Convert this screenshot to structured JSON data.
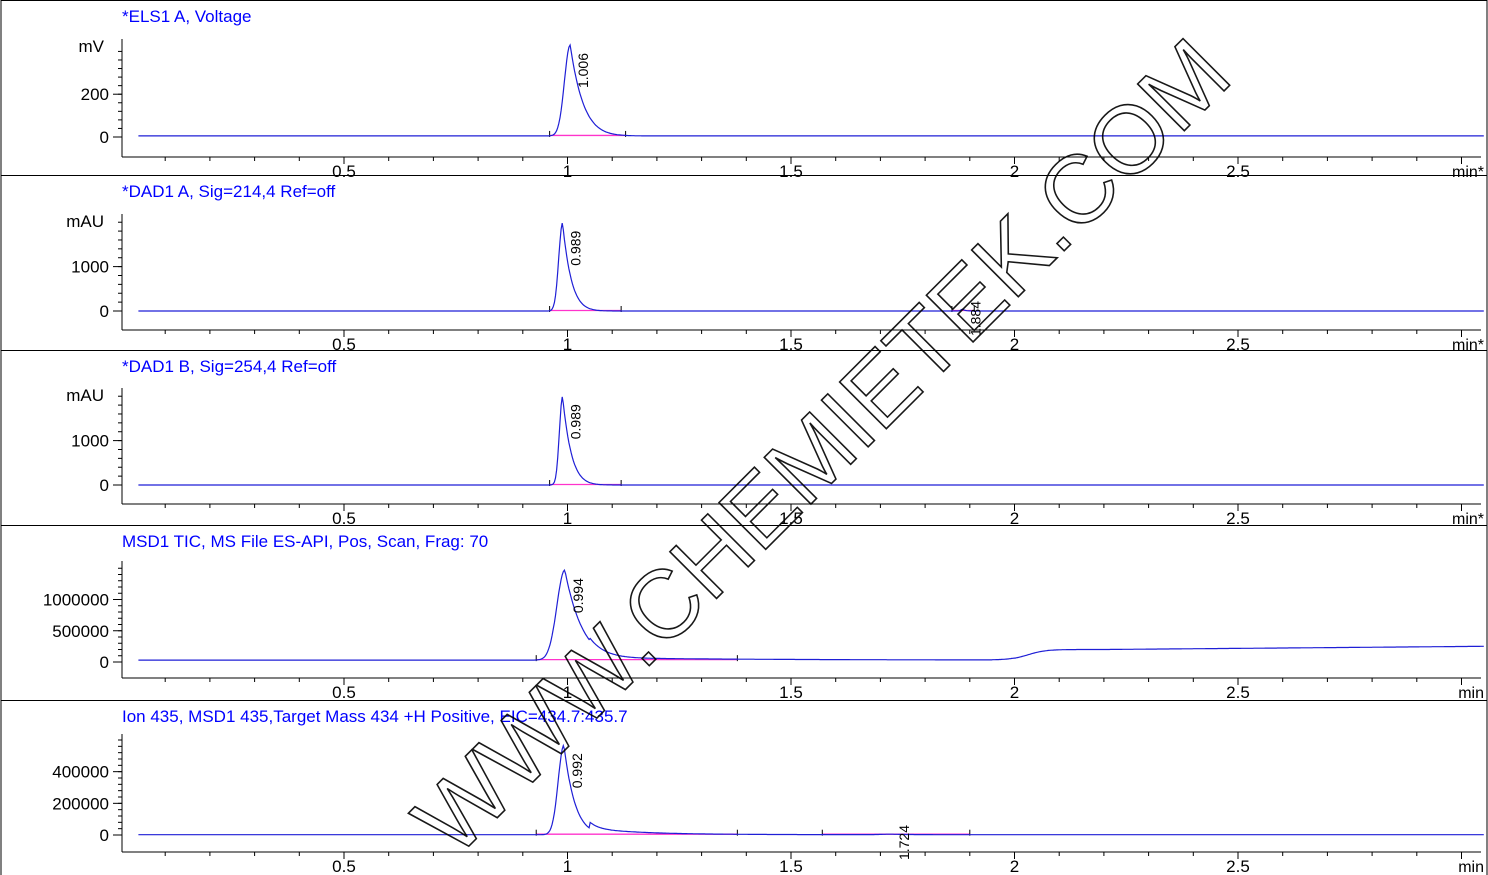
{
  "chart_data": [
    {
      "type": "line",
      "title": "*ELS1 A, Voltage",
      "ylabel": "mV",
      "xlabel": "min*",
      "xlim": [
        0,
        3.05
      ],
      "ylim": [
        0,
        430
      ],
      "x_ticks": [
        0.5,
        1,
        1.5,
        2,
        2.5
      ],
      "y_ticks": [
        0,
        200
      ],
      "baseline": 5,
      "peaks": [
        {
          "rt": 1.006,
          "label": "1.006",
          "height": 425,
          "start": 0.96,
          "end": 1.13,
          "rise": 0.018,
          "decay": 0.03
        }
      ],
      "series": [
        {
          "values": []
        }
      ]
    },
    {
      "type": "line",
      "title": "*DAD1 A, Sig=214,4 Ref=off",
      "ylabel": "mAU",
      "xlabel": "min*",
      "xlim": [
        0,
        3.05
      ],
      "ylim": [
        0,
        2050
      ],
      "x_ticks": [
        0.5,
        1,
        1.5,
        2,
        2.5
      ],
      "y_ticks": [
        0,
        1000
      ],
      "baseline": 0,
      "peaks": [
        {
          "rt": 0.989,
          "label": "0.989",
          "height": 1990,
          "start": 0.96,
          "end": 1.12,
          "rise": 0.012,
          "decay": 0.02
        },
        {
          "rt": 1.884,
          "label": "1.884",
          "height": 40,
          "start": 1.86,
          "end": 1.91,
          "rise": 0.005,
          "decay": 0.006
        }
      ],
      "series": [
        {
          "values": []
        }
      ]
    },
    {
      "type": "line",
      "title": "*DAD1 B, Sig=254,4 Ref=off",
      "ylabel": "mAU",
      "xlabel": "min*",
      "xlim": [
        0,
        3.05
      ],
      "ylim": [
        0,
        2050
      ],
      "x_ticks": [
        0.5,
        1,
        1.5,
        2,
        2.5
      ],
      "y_ticks": [
        0,
        1000
      ],
      "baseline": 0,
      "peaks": [
        {
          "rt": 0.989,
          "label": "0.989",
          "height": 2000,
          "start": 0.96,
          "end": 1.12,
          "rise": 0.01,
          "decay": 0.02
        }
      ],
      "series": [
        {
          "values": []
        }
      ]
    },
    {
      "type": "line",
      "title": "MSD1 TIC, MS File      ES-API, Pos, Scan, Frag: 70",
      "ylabel": "",
      "xlabel": "min",
      "xlim": [
        0,
        3.05
      ],
      "ylim": [
        0,
        1520000
      ],
      "x_ticks": [
        0.5,
        1,
        1.5,
        2,
        2.5
      ],
      "y_ticks": [
        0,
        500000,
        1000000
      ],
      "baseline": 30000,
      "peaks": [
        {
          "rt": 0.994,
          "label": "0.994",
          "height": 1440000,
          "start": 0.93,
          "end": 1.38,
          "rise": 0.025,
          "decay": 0.04
        }
      ],
      "series": [
        {
          "values": []
        }
      ]
    },
    {
      "type": "line",
      "title": "Ion 435, MSD1 435,Target Mass 434 +H Positive, EIC=434.7:435.7",
      "ylabel": "",
      "xlabel": "min",
      "xlim": [
        0,
        3.05
      ],
      "ylim": [
        0,
        600000
      ],
      "x_ticks": [
        0.5,
        1,
        1.5,
        2,
        2.5
      ],
      "y_ticks": [
        0,
        200000,
        400000
      ],
      "baseline": 2000,
      "peaks": [
        {
          "rt": 0.992,
          "label": "0.992",
          "height": 565000,
          "start": 0.93,
          "end": 1.38,
          "rise": 0.018,
          "decay": 0.025
        },
        {
          "rt": 1.724,
          "label": "1.724",
          "height": 3000,
          "start": 1.57,
          "end": 1.9,
          "rise": 0.03,
          "decay": 0.04
        }
      ],
      "series": [
        {
          "values": []
        }
      ]
    }
  ],
  "watermark": "WWW.CHEMIETEK.COM",
  "colors": {
    "trace": "#1f1fd6",
    "title": "#0000ff",
    "baseline_fit": "#ff33cc",
    "axis": "#000000"
  }
}
